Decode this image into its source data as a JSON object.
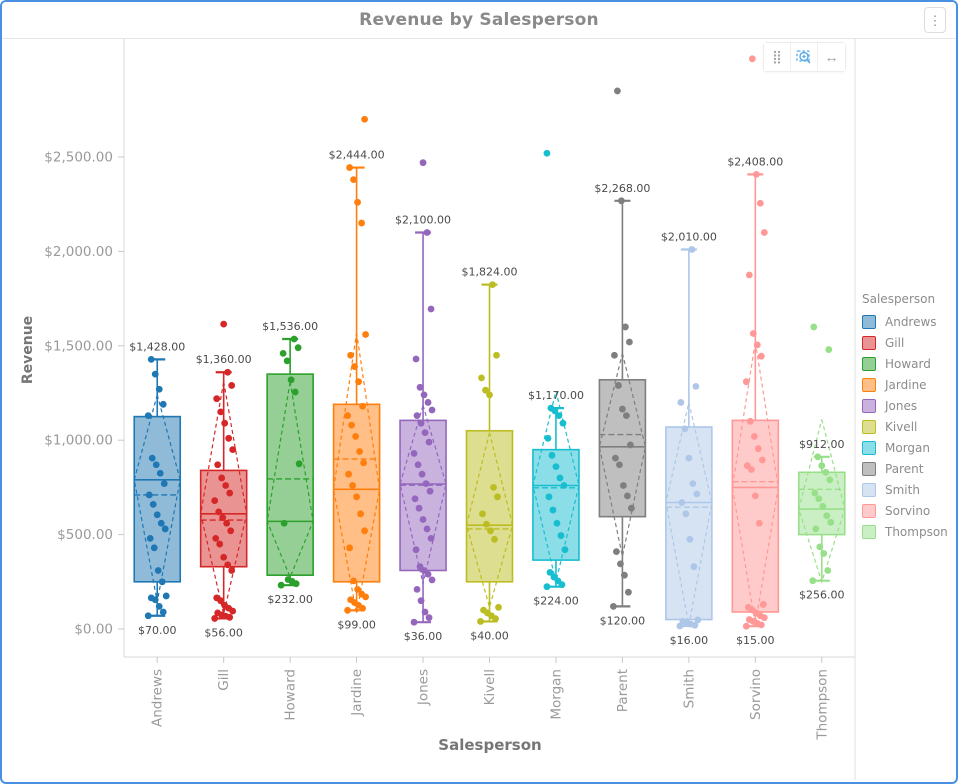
{
  "window": {
    "title": "Revenue by Salesperson"
  },
  "menu": {
    "kebab_icon": "⋮"
  },
  "toolbar": {
    "icons": [
      "drag-handle",
      "zoom-selection",
      "resize-horizontal"
    ]
  },
  "chart_data": {
    "type": "box",
    "title": "Revenue by Salesperson",
    "xlabel": "Salesperson",
    "ylabel": "Revenue",
    "legend_title": "Salesperson",
    "legend_position": "right",
    "grid": false,
    "ylim": [
      0,
      3100
    ],
    "y_ticks": {
      "values": [
        0,
        500,
        1000,
        1500,
        2000,
        2500
      ],
      "labels": [
        "$0.00",
        "$500.00",
        "$1,000.00",
        "$1,500.00",
        "$2,000.00",
        "$2,500.00"
      ]
    },
    "categories": [
      "Andrews",
      "Gill",
      "Howard",
      "Jardine",
      "Jones",
      "Kivell",
      "Morgan",
      "Parent",
      "Smith",
      "Sorvino",
      "Thompson"
    ],
    "series": [
      {
        "name": "Andrews",
        "color": "#1f77b4",
        "min": 70,
        "q1": 250,
        "median": 790,
        "mean": 710,
        "q3": 1125,
        "max": 1428,
        "ci": [
          145,
          1240
        ],
        "min_label": "$70.00",
        "max_label": "$1,428.00",
        "points": [
          70,
          90,
          120,
          155,
          165,
          175,
          250,
          310,
          430,
          480,
          530,
          560,
          605,
          660,
          710,
          770,
          825,
          870,
          905,
          1130,
          1190,
          1270,
          1350,
          1428
        ],
        "outliers": []
      },
      {
        "name": "Gill",
        "color": "#d62728",
        "min": 56,
        "q1": 330,
        "median": 610,
        "mean": 577,
        "q3": 840,
        "max": 1360,
        "ci": [
          80,
          1310
        ],
        "min_label": "$56.00",
        "max_label": "$1,360.00",
        "points": [
          56,
          62,
          68,
          75,
          85,
          95,
          110,
          125,
          150,
          165,
          310,
          340,
          380,
          450,
          480,
          520,
          560,
          590,
          620,
          680,
          720,
          760,
          800,
          870,
          950,
          1010,
          1090,
          1150,
          1220,
          1290,
          1360
        ],
        "outliers": [
          1615
        ]
      },
      {
        "name": "Howard",
        "color": "#2ca02c",
        "min": 232,
        "q1": 285,
        "median": 570,
        "mean": 795,
        "q3": 1350,
        "max": 1536,
        "ci": [
          275,
          1310
        ],
        "min_label": "$232.00",
        "max_label": "$1,536.00",
        "points": [
          232,
          240,
          252,
          262,
          560,
          875,
          1255,
          1320,
          1420,
          1460,
          1490,
          1536
        ],
        "outliers": []
      },
      {
        "name": "Jardine",
        "color": "#ff7f0e",
        "min": 99,
        "q1": 250,
        "median": 740,
        "mean": 900,
        "q3": 1190,
        "max": 2444,
        "ci": [
          80,
          1570
        ],
        "min_label": "$99.00",
        "max_label": "$2,444.00",
        "points": [
          99,
          110,
          125,
          140,
          155,
          170,
          185,
          210,
          255,
          430,
          520,
          610,
          700,
          760,
          820,
          880,
          940,
          1020,
          1080,
          1130,
          1180,
          1310,
          1390,
          1450,
          1560,
          2150,
          2260,
          2380,
          2444
        ],
        "outliers": [
          2700
        ]
      },
      {
        "name": "Jones",
        "color": "#9467bd",
        "min": 36,
        "q1": 310,
        "median": 768,
        "mean": 762,
        "q3": 1105,
        "max": 2100,
        "ci": [
          240,
          1185
        ],
        "min_label": "$36.00",
        "max_label": "$2,100.00",
        "points": [
          36,
          60,
          90,
          150,
          210,
          260,
          290,
          310,
          330,
          420,
          480,
          530,
          580,
          640,
          690,
          730,
          770,
          820,
          870,
          930,
          990,
          1040,
          1090,
          1130,
          1160,
          1200,
          1240,
          1280,
          1430,
          1695,
          2100
        ],
        "outliers": [
          2470
        ]
      },
      {
        "name": "Kivell",
        "color": "#bcbd22",
        "min": 40,
        "q1": 250,
        "median": 550,
        "mean": 530,
        "q3": 1050,
        "max": 1824,
        "ci": [
          115,
          1040
        ],
        "min_label": "$40.00",
        "max_label": "$1,824.00",
        "points": [
          40,
          55,
          70,
          85,
          100,
          115,
          475,
          520,
          555,
          610,
          700,
          750,
          1240,
          1265,
          1330,
          1450,
          1824
        ],
        "outliers": []
      },
      {
        "name": "Morgan",
        "color": "#17becf",
        "min": 224,
        "q1": 365,
        "median": 760,
        "mean": 748,
        "q3": 950,
        "max": 1170,
        "ci": [
          250,
          1260
        ],
        "min_label": "$224.00",
        "max_label": "$1,170.00",
        "points": [
          224,
          235,
          255,
          275,
          300,
          420,
          495,
          560,
          630,
          700,
          760,
          800,
          860,
          920,
          1010,
          1090,
          1130,
          1155,
          1170
        ],
        "outliers": [
          2520
        ]
      },
      {
        "name": "Parent",
        "color": "#7f7f7f",
        "min": 120,
        "q1": 595,
        "median": 965,
        "mean": 1030,
        "q3": 1320,
        "max": 2268,
        "ci": [
          385,
          1460
        ],
        "min_label": "$120.00",
        "max_label": "$2,268.00",
        "points": [
          120,
          195,
          285,
          345,
          410,
          640,
          705,
          760,
          870,
          905,
          975,
          1130,
          1165,
          1290,
          1450,
          1520,
          1600,
          2268
        ],
        "outliers": [
          2850
        ]
      },
      {
        "name": "Smith",
        "color": "#aec7e8",
        "min": 16,
        "q1": 50,
        "median": 670,
        "mean": 645,
        "q3": 1070,
        "max": 2010,
        "ci": [
          20,
          1200
        ],
        "min_label": "$16.00",
        "max_label": "$2,010.00",
        "points": [
          16,
          20,
          26,
          32,
          40,
          48,
          330,
          475,
          610,
          670,
          715,
          770,
          905,
          1060,
          1200,
          1285,
          2010
        ],
        "outliers": []
      },
      {
        "name": "Sorvino",
        "color": "#ff9896",
        "min": 15,
        "q1": 90,
        "median": 750,
        "mean": 780,
        "q3": 1105,
        "max": 2408,
        "ci": [
          25,
          1520
        ],
        "min_label": "$15.00",
        "max_label": "$2,408.00",
        "points": [
          15,
          22,
          30,
          40,
          50,
          60,
          70,
          85,
          100,
          115,
          130,
          560,
          705,
          845,
          865,
          895,
          955,
          1020,
          1100,
          1310,
          1445,
          1505,
          1565,
          1875,
          2100,
          2255,
          2408
        ],
        "outliers": [
          3020
        ]
      },
      {
        "name": "Thompson",
        "color": "#98df8a",
        "min": 256,
        "q1": 500,
        "median": 635,
        "mean": 740,
        "q3": 830,
        "max": 912,
        "ci": [
          250,
          1110
        ],
        "min_label": "$256.00",
        "max_label": "$912.00",
        "points": [
          256,
          310,
          400,
          435,
          530,
          565,
          600,
          650,
          690,
          720,
          790,
          830,
          865,
          912
        ],
        "outliers": [
          1600,
          1480
        ]
      }
    ]
  }
}
